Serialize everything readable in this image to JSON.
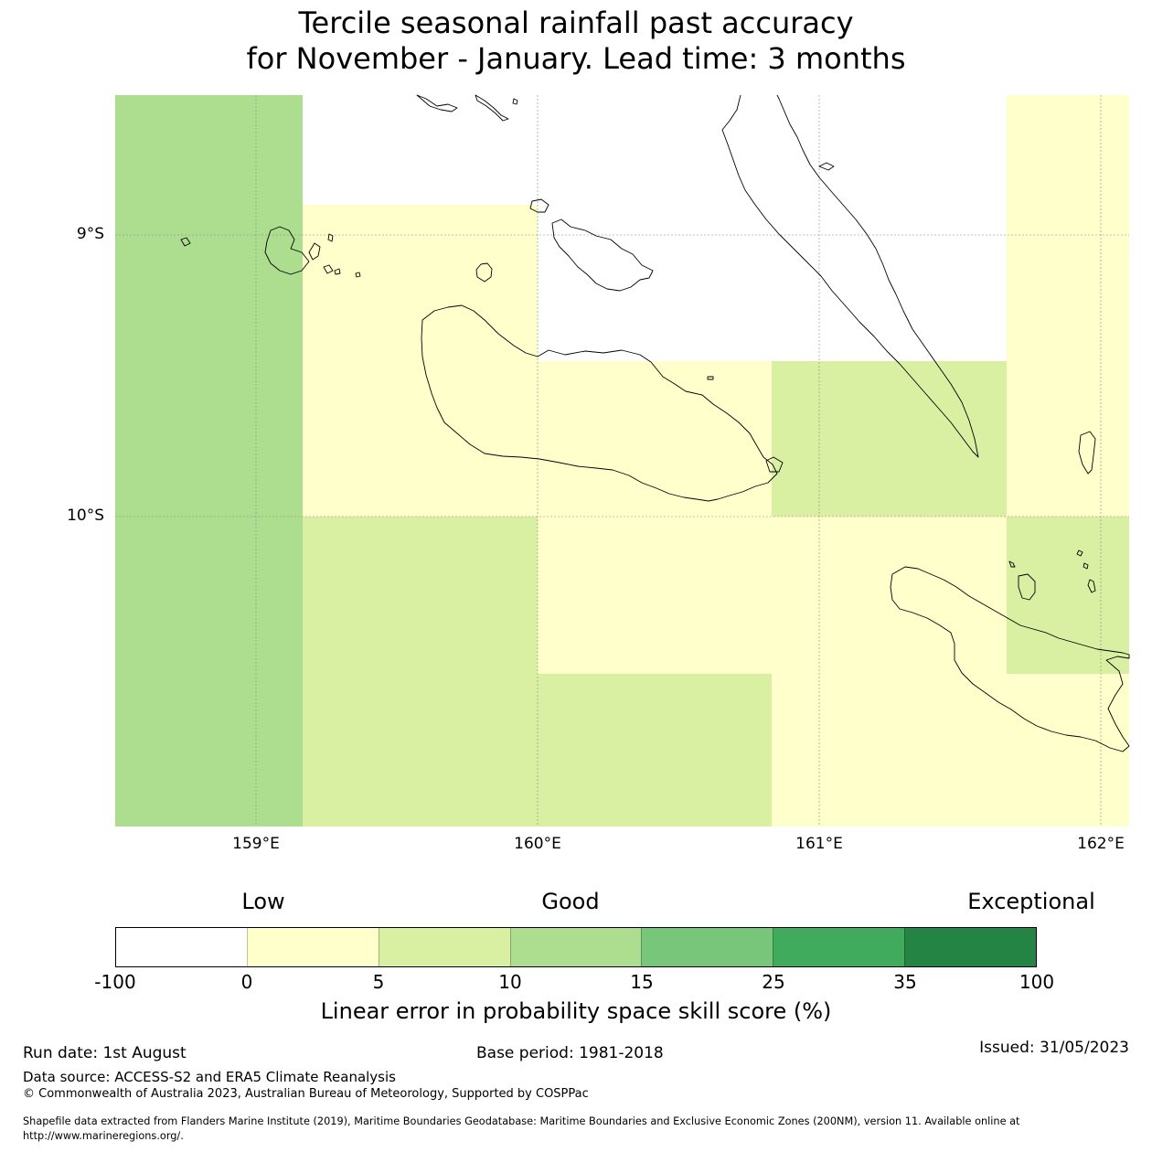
{
  "title_line1": "Tercile seasonal rainfall past accuracy",
  "title_line2": "for November - January. Lead time: 3 months",
  "map": {
    "lat_labels": [
      "9°S",
      "10°S"
    ],
    "lon_labels": [
      "159°E",
      "160°E",
      "161°E",
      "162°E"
    ],
    "colors": {
      "no_data": "#ffffff",
      "cat_0_5": "#ffffcc",
      "cat_5_10": "#d9f0a3",
      "cat_10_15": "#addd8e"
    }
  },
  "colorbar": {
    "words": [
      "Low",
      "Good",
      "Exceptional"
    ],
    "ticks": [
      "-100",
      "0",
      "5",
      "10",
      "15",
      "25",
      "35",
      "100"
    ],
    "colors": [
      "#ffffff",
      "#ffffcc",
      "#d9f0a3",
      "#addd8e",
      "#78c679",
      "#41ab5d",
      "#238443"
    ],
    "label": "Linear error in probability space skill score (%)"
  },
  "footer": {
    "run_date": "Run date: 1st August",
    "base_period": "Base period: 1981-2018",
    "issued": "Issued: 31/05/2023",
    "data_source": "Data source: ACCESS-S2 and ERA5 Climate Reanalysis",
    "copyright": "© Commonwealth of Australia 2023, Australian Bureau of Meteorology, Supported by COSPPac",
    "shapefile_line1": "Shapefile data extracted from Flanders Marine Institute (2019), Maritime Boundaries Geodatabase: Maritime Boundaries and Exclusive Economic Zones (200NM), version 11. Available online at",
    "shapefile_line2": "http://www.marineregions.org/."
  }
}
